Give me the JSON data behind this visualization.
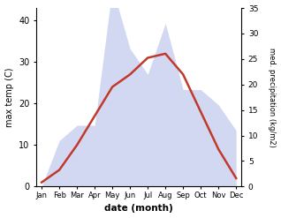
{
  "months": [
    "Jan",
    "Feb",
    "Mar",
    "Apr",
    "May",
    "Jun",
    "Jul",
    "Aug",
    "Sep",
    "Oct",
    "Nov",
    "Dec"
  ],
  "month_positions": [
    0,
    1,
    2,
    3,
    4,
    5,
    6,
    7,
    8,
    9,
    10,
    11
  ],
  "temperature": [
    1,
    4,
    10,
    17,
    24,
    27,
    31,
    32,
    27,
    18,
    9,
    2
  ],
  "precipitation": [
    0,
    9,
    12,
    12,
    39,
    27,
    22,
    32,
    19,
    19,
    16,
    11
  ],
  "temp_ylim": [
    0,
    43
  ],
  "precip_ylim": [
    0,
    35
  ],
  "temp_yticks": [
    0,
    10,
    20,
    30,
    40
  ],
  "precip_yticks": [
    0,
    5,
    10,
    15,
    20,
    25,
    30,
    35
  ],
  "temp_color": "#c0392b",
  "precip_fill_color": "#b0b8e8",
  "precip_fill_alpha": 0.55,
  "xlabel": "date (month)",
  "ylabel_left": "max temp (C)",
  "ylabel_right": "med. precipitation (kg/m2)",
  "background_color": "#ffffff"
}
